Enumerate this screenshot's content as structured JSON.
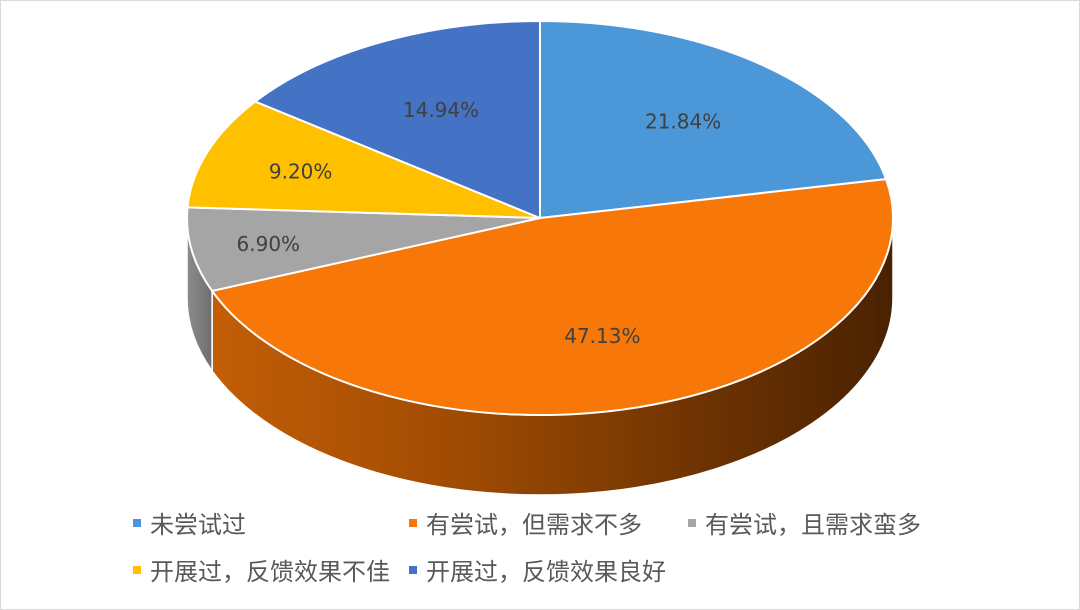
{
  "chart_data": {
    "type": "pie",
    "title": "",
    "labels": [
      "未尝试过",
      "有尝试，但需求不多",
      "有尝试，且需求蛮多",
      "开展过，反馈效果不佳",
      "开展过，反馈效果良好"
    ],
    "values": [
      21.84,
      47.13,
      6.9,
      9.2,
      14.94
    ],
    "value_labels": [
      "21.84%",
      "47.13%",
      "6.90%",
      "9.20%",
      "14.94%"
    ],
    "colors": [
      "#4c97d8",
      "#f77808",
      "#a5a5a5",
      "#ffc000",
      "#4472c4"
    ],
    "start_angle": "12 o'clock, clockwise",
    "style": "3d-tilted",
    "legend_position": "bottom"
  }
}
